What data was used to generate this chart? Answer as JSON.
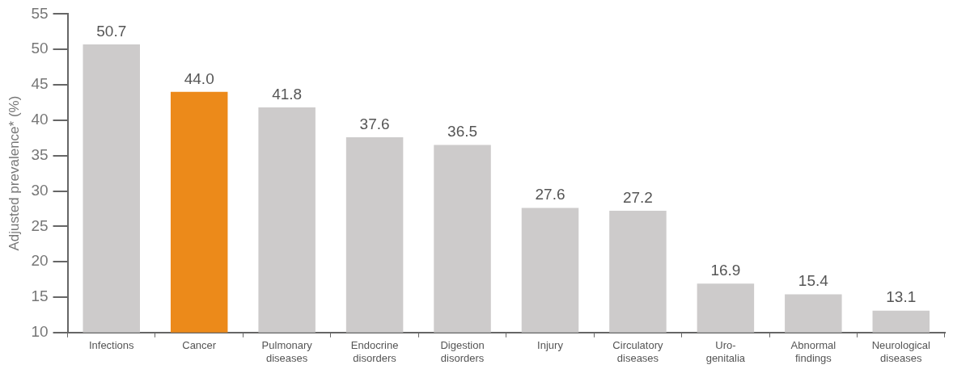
{
  "chart_data": {
    "type": "bar",
    "ylabel": "Adjusted prevalence* (%)",
    "categories": [
      "Infections",
      "Cancer",
      "Pulmonary diseases",
      "Endocrine disorders",
      "Digestion disorders",
      "Injury",
      "Circulatory diseases",
      "Uro-genitalia",
      "Abnormal findings",
      "Neurological diseases"
    ],
    "values": [
      50.7,
      44.0,
      41.8,
      37.6,
      36.5,
      27.6,
      27.2,
      16.9,
      15.4,
      13.1
    ],
    "colors": [
      "#cdcbcb",
      "#ec8a1a",
      "#cdcbcb",
      "#cdcbcb",
      "#cdcbcb",
      "#cdcbcb",
      "#cdcbcb",
      "#cdcbcb",
      "#cdcbcb",
      "#cdcbcb"
    ],
    "value_labels": [
      "50.7",
      "44.0",
      "41.8",
      "37.6",
      "36.5",
      "27.6",
      "27.2",
      "16.9",
      "15.4",
      "13.1"
    ],
    "ylim": [
      10,
      55
    ],
    "yticks": [
      10,
      15,
      20,
      25,
      30,
      35,
      40,
      45,
      50,
      55
    ],
    "grid": false,
    "legend": false
  }
}
